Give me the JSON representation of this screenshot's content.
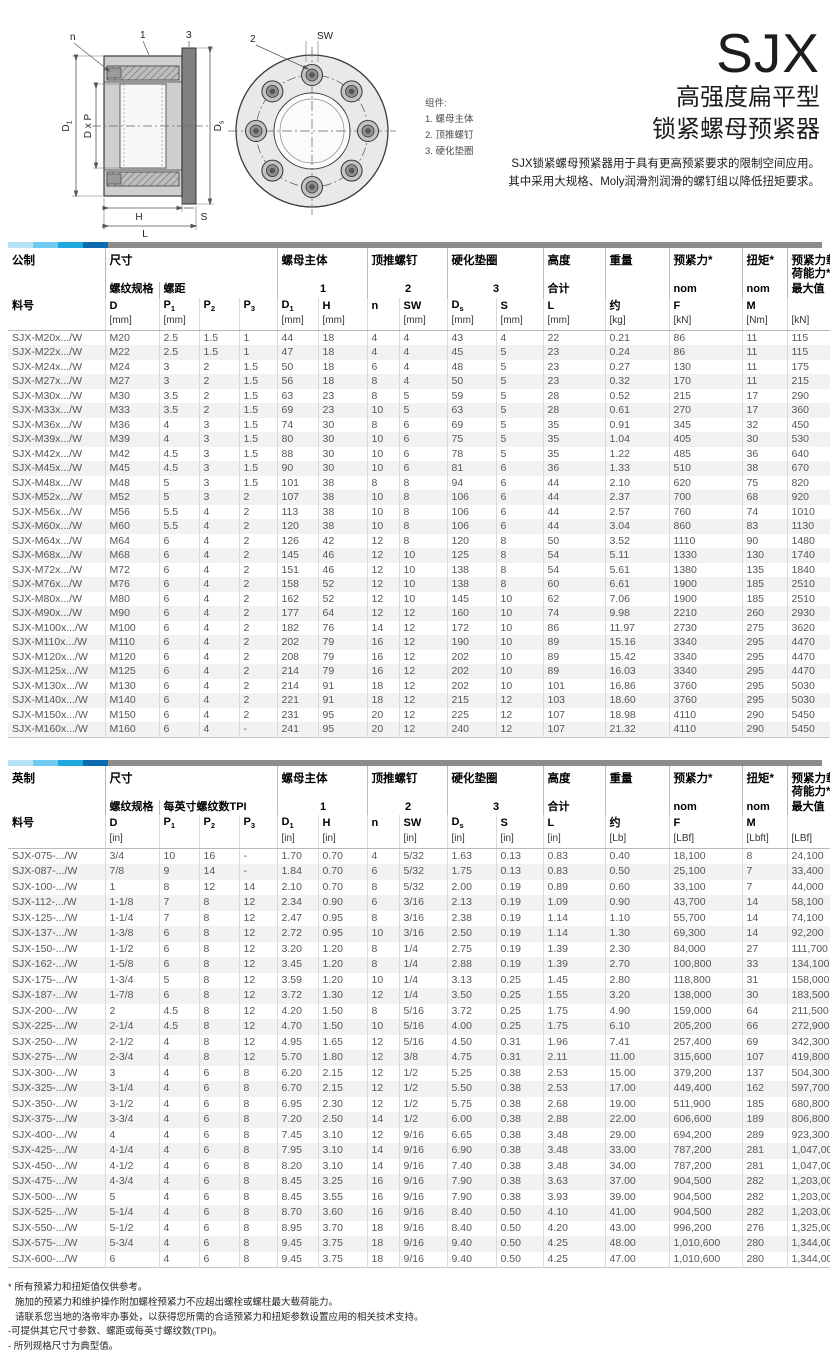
{
  "header": {
    "product": "SJX",
    "subtitle1": "高强度扁平型",
    "subtitle2": "锁紧螺母预紧器",
    "desc1": "SJX锁紧螺母预紧器用于具有更高预紧要求的限制空间应用。",
    "desc2": "其中采用大规格、Moly润滑剂润滑的螺钉组以降低扭矩要求。"
  },
  "diagram": {
    "legend_title": "组件:",
    "legend": [
      "1. 螺母主体",
      "2. 顶推螺钉",
      "3. 硬化垫圈"
    ],
    "labels": {
      "n": "n",
      "one": "1",
      "three": "3",
      "two": "2",
      "sw": "SW",
      "d1": "D",
      "d1sub": "1",
      "dxp": "D x P",
      "ds": "D",
      "dssub": "s",
      "h": "H",
      "s": "S",
      "l": "L"
    }
  },
  "colors": {
    "accent_bar": [
      "#b7e3f7",
      "#6fcbf0",
      "#21a8e0",
      "#0b6ab0"
    ],
    "accent_bar_rest": "#8c8c8c"
  },
  "metric": {
    "groups": {
      "unit_system": "公制",
      "dims": "尺寸",
      "nut_body": "螺母主体",
      "jack_screws": "顶推螺钉",
      "washer": "硬化垫圈",
      "height": "高度",
      "weight": "重量",
      "preload": "预紧力*",
      "torque": "扭矩*",
      "capacity": "预紧力载\n荷能力*"
    },
    "subgroups": {
      "thread": "螺纹规格",
      "pitch": "螺距",
      "g1": "1",
      "g2": "2",
      "g3": "3",
      "total": "合计",
      "nom1": "nom",
      "nom2": "nom",
      "max": "最大值"
    },
    "columns": [
      {
        "name": "料号",
        "unit": ""
      },
      {
        "name": "D",
        "unit": "[mm]"
      },
      {
        "name": "P",
        "sub": "1",
        "unit": "[mm]"
      },
      {
        "name": "P",
        "sub": "2",
        "unit": ""
      },
      {
        "name": "P",
        "sub": "3",
        "unit": ""
      },
      {
        "name": "D",
        "sub": "1",
        "unit": "[mm]"
      },
      {
        "name": "H",
        "unit": "[mm]"
      },
      {
        "name": "n",
        "unit": ""
      },
      {
        "name": "SW",
        "unit": "[mm]"
      },
      {
        "name": "D",
        "sub": "s",
        "unit": "[mm]"
      },
      {
        "name": "S",
        "unit": "[mm]"
      },
      {
        "name": "L",
        "unit": "[mm]"
      },
      {
        "name": "约",
        "unit": "[kg]"
      },
      {
        "name": "F",
        "unit": "[kN]"
      },
      {
        "name": "M",
        "unit": "[Nm]"
      },
      {
        "name": "",
        "unit": "[kN]"
      }
    ],
    "rows": [
      [
        "SJX-M20x.../W",
        "M20",
        "2.5",
        "1.5",
        "1",
        "44",
        "18",
        "4",
        "4",
        "43",
        "4",
        "22",
        "0.21",
        "86",
        "11",
        "115"
      ],
      [
        "SJX-M22x.../W",
        "M22",
        "2.5",
        "1.5",
        "1",
        "47",
        "18",
        "4",
        "4",
        "45",
        "5",
        "23",
        "0.24",
        "86",
        "11",
        "115"
      ],
      [
        "SJX-M24x.../W",
        "M24",
        "3",
        "2",
        "1.5",
        "50",
        "18",
        "6",
        "4",
        "48",
        "5",
        "23",
        "0.27",
        "130",
        "11",
        "175"
      ],
      [
        "SJX-M27x.../W",
        "M27",
        "3",
        "2",
        "1.5",
        "56",
        "18",
        "8",
        "4",
        "50",
        "5",
        "23",
        "0.32",
        "170",
        "11",
        "215"
      ],
      [
        "SJX-M30x.../W",
        "M30",
        "3.5",
        "2",
        "1.5",
        "63",
        "23",
        "8",
        "5",
        "59",
        "5",
        "28",
        "0.52",
        "215",
        "17",
        "290"
      ],
      [
        "SJX-M33x.../W",
        "M33",
        "3.5",
        "2",
        "1.5",
        "69",
        "23",
        "10",
        "5",
        "63",
        "5",
        "28",
        "0.61",
        "270",
        "17",
        "360"
      ],
      [
        "SJX-M36x.../W",
        "M36",
        "4",
        "3",
        "1.5",
        "74",
        "30",
        "8",
        "6",
        "69",
        "5",
        "35",
        "0.91",
        "345",
        "32",
        "450"
      ],
      [
        "SJX-M39x.../W",
        "M39",
        "4",
        "3",
        "1.5",
        "80",
        "30",
        "10",
        "6",
        "75",
        "5",
        "35",
        "1.04",
        "405",
        "30",
        "530"
      ],
      [
        "SJX-M42x.../W",
        "M42",
        "4.5",
        "3",
        "1.5",
        "88",
        "30",
        "10",
        "6",
        "78",
        "5",
        "35",
        "1.22",
        "485",
        "36",
        "640"
      ],
      [
        "SJX-M45x.../W",
        "M45",
        "4.5",
        "3",
        "1.5",
        "90",
        "30",
        "10",
        "6",
        "81",
        "6",
        "36",
        "1.33",
        "510",
        "38",
        "670"
      ],
      [
        "SJX-M48x.../W",
        "M48",
        "5",
        "3",
        "1.5",
        "101",
        "38",
        "8",
        "8",
        "94",
        "6",
        "44",
        "2.10",
        "620",
        "75",
        "820"
      ],
      [
        "SJX-M52x.../W",
        "M52",
        "5",
        "3",
        "2",
        "107",
        "38",
        "10",
        "8",
        "106",
        "6",
        "44",
        "2.37",
        "700",
        "68",
        "920"
      ],
      [
        "SJX-M56x.../W",
        "M56",
        "5.5",
        "4",
        "2",
        "113",
        "38",
        "10",
        "8",
        "106",
        "6",
        "44",
        "2.57",
        "760",
        "74",
        "1010"
      ],
      [
        "SJX-M60x.../W",
        "M60",
        "5.5",
        "4",
        "2",
        "120",
        "38",
        "10",
        "8",
        "106",
        "6",
        "44",
        "3.04",
        "860",
        "83",
        "1130"
      ],
      [
        "SJX-M64x.../W",
        "M64",
        "6",
        "4",
        "2",
        "126",
        "42",
        "12",
        "8",
        "120",
        "8",
        "50",
        "3.52",
        "1110",
        "90",
        "1480"
      ],
      [
        "SJX-M68x.../W",
        "M68",
        "6",
        "4",
        "2",
        "145",
        "46",
        "12",
        "10",
        "125",
        "8",
        "54",
        "5.11",
        "1330",
        "130",
        "1740"
      ],
      [
        "SJX-M72x.../W",
        "M72",
        "6",
        "4",
        "2",
        "151",
        "46",
        "12",
        "10",
        "138",
        "8",
        "54",
        "5.61",
        "1380",
        "135",
        "1840"
      ],
      [
        "SJX-M76x.../W",
        "M76",
        "6",
        "4",
        "2",
        "158",
        "52",
        "12",
        "10",
        "138",
        "8",
        "60",
        "6.61",
        "1900",
        "185",
        "2510"
      ],
      [
        "SJX-M80x.../W",
        "M80",
        "6",
        "4",
        "2",
        "162",
        "52",
        "12",
        "10",
        "145",
        "10",
        "62",
        "7.06",
        "1900",
        "185",
        "2510"
      ],
      [
        "SJX-M90x.../W",
        "M90",
        "6",
        "4",
        "2",
        "177",
        "64",
        "12",
        "12",
        "160",
        "10",
        "74",
        "9.98",
        "2210",
        "260",
        "2930"
      ],
      [
        "SJX-M100x.../W",
        "M100",
        "6",
        "4",
        "2",
        "182",
        "76",
        "14",
        "12",
        "172",
        "10",
        "86",
        "11.97",
        "2730",
        "275",
        "3620"
      ],
      [
        "SJX-M110x.../W",
        "M110",
        "6",
        "4",
        "2",
        "202",
        "79",
        "16",
        "12",
        "190",
        "10",
        "89",
        "15.16",
        "3340",
        "295",
        "4470"
      ],
      [
        "SJX-M120x.../W",
        "M120",
        "6",
        "4",
        "2",
        "208",
        "79",
        "16",
        "12",
        "202",
        "10",
        "89",
        "15.42",
        "3340",
        "295",
        "4470"
      ],
      [
        "SJX-M125x.../W",
        "M125",
        "6",
        "4",
        "2",
        "214",
        "79",
        "16",
        "12",
        "202",
        "10",
        "89",
        "16.03",
        "3340",
        "295",
        "4470"
      ],
      [
        "SJX-M130x.../W",
        "M130",
        "6",
        "4",
        "2",
        "214",
        "91",
        "18",
        "12",
        "202",
        "10",
        "101",
        "16.86",
        "3760",
        "295",
        "5030"
      ],
      [
        "SJX-M140x.../W",
        "M140",
        "6",
        "4",
        "2",
        "221",
        "91",
        "18",
        "12",
        "215",
        "12",
        "103",
        "18.60",
        "3760",
        "295",
        "5030"
      ],
      [
        "SJX-M150x.../W",
        "M150",
        "6",
        "4",
        "2",
        "231",
        "95",
        "20",
        "12",
        "225",
        "12",
        "107",
        "18.98",
        "4110",
        "290",
        "5450"
      ],
      [
        "SJX-M160x.../W",
        "M160",
        "6",
        "4",
        "-",
        "241",
        "95",
        "20",
        "12",
        "240",
        "12",
        "107",
        "21.32",
        "4110",
        "290",
        "5450"
      ]
    ]
  },
  "imperial": {
    "groups": {
      "unit_system": "英制",
      "dims": "尺寸",
      "nut_body": "螺母主体",
      "jack_screws": "顶推螺钉",
      "washer": "硬化垫圈",
      "height": "高度",
      "weight": "重量",
      "preload": "预紧力*",
      "torque": "扭矩*",
      "capacity": "预紧力载\n荷能力*"
    },
    "subgroups": {
      "thread": "螺纹规格",
      "pitch": "每英寸螺纹数TPI",
      "g1": "1",
      "g2": "2",
      "g3": "3",
      "total": "合计",
      "nom1": "nom",
      "nom2": "nom",
      "max": "最大值"
    },
    "columns": [
      {
        "name": "料号",
        "unit": ""
      },
      {
        "name": "D",
        "unit": "[in]"
      },
      {
        "name": "P",
        "sub": "1",
        "unit": ""
      },
      {
        "name": "P",
        "sub": "2",
        "unit": ""
      },
      {
        "name": "P",
        "sub": "3",
        "unit": ""
      },
      {
        "name": "D",
        "sub": "1",
        "unit": "[in]"
      },
      {
        "name": "H",
        "unit": "[in]"
      },
      {
        "name": "n",
        "unit": ""
      },
      {
        "name": "SW",
        "unit": "[in]"
      },
      {
        "name": "D",
        "sub": "s",
        "unit": "[in]"
      },
      {
        "name": "S",
        "unit": "[in]"
      },
      {
        "name": "L",
        "unit": "[in]"
      },
      {
        "name": "约",
        "unit": "[Lb]"
      },
      {
        "name": "F",
        "unit": "[LBf]"
      },
      {
        "name": "M",
        "unit": "[Lbft]"
      },
      {
        "name": "",
        "unit": "[LBf]"
      }
    ],
    "rows": [
      [
        "SJX-075-.../W",
        "3/4",
        "10",
        "16",
        "-",
        "1.70",
        "0.70",
        "4",
        "5/32",
        "1.63",
        "0.13",
        "0.83",
        "0.40",
        "18,100",
        "8",
        "24,100"
      ],
      [
        "SJX-087-.../W",
        "7/8",
        "9",
        "14",
        "-",
        "1.84",
        "0.70",
        "6",
        "5/32",
        "1.75",
        "0.13",
        "0.83",
        "0.50",
        "25,100",
        "7",
        "33,400"
      ],
      [
        "SJX-100-.../W",
        "1",
        "8",
        "12",
        "14",
        "2.10",
        "0.70",
        "8",
        "5/32",
        "2.00",
        "0.19",
        "0.89",
        "0.60",
        "33,100",
        "7",
        "44,000"
      ],
      [
        "SJX-112-.../W",
        "1-1/8",
        "7",
        "8",
        "12",
        "2.34",
        "0.90",
        "6",
        "3/16",
        "2.13",
        "0.19",
        "1.09",
        "0.90",
        "43,700",
        "14",
        "58,100"
      ],
      [
        "SJX-125-.../W",
        "1-1/4",
        "7",
        "8",
        "12",
        "2.47",
        "0.95",
        "8",
        "3/16",
        "2.38",
        "0.19",
        "1.14",
        "1.10",
        "55,700",
        "14",
        "74,100"
      ],
      [
        "SJX-137-.../W",
        "1-3/8",
        "6",
        "8",
        "12",
        "2.72",
        "0.95",
        "10",
        "3/16",
        "2.50",
        "0.19",
        "1.14",
        "1.30",
        "69,300",
        "14",
        "92,200"
      ],
      [
        "SJX-150-.../W",
        "1-1/2",
        "6",
        "8",
        "12",
        "3.20",
        "1.20",
        "8",
        "1/4",
        "2.75",
        "0.19",
        "1.39",
        "2.30",
        "84,000",
        "27",
        "111,700"
      ],
      [
        "SJX-162-.../W",
        "1-5/8",
        "6",
        "8",
        "12",
        "3.45",
        "1.20",
        "8",
        "1/4",
        "2.88",
        "0.19",
        "1.39",
        "2.70",
        "100,800",
        "33",
        "134,100"
      ],
      [
        "SJX-175-.../W",
        "1-3/4",
        "5",
        "8",
        "12",
        "3.59",
        "1.20",
        "10",
        "1/4",
        "3.13",
        "0.25",
        "1.45",
        "2.80",
        "118,800",
        "31",
        "158,000"
      ],
      [
        "SJX-187-.../W",
        "1-7/8",
        "6",
        "8",
        "12",
        "3.72",
        "1.30",
        "12",
        "1/4",
        "3.50",
        "0.25",
        "1.55",
        "3.20",
        "138,000",
        "30",
        "183,500"
      ],
      [
        "SJX-200-.../W",
        "2",
        "4.5",
        "8",
        "12",
        "4.20",
        "1.50",
        "8",
        "5/16",
        "3.72",
        "0.25",
        "1.75",
        "4.90",
        "159,000",
        "64",
        "211,500"
      ],
      [
        "SJX-225-.../W",
        "2-1/4",
        "4.5",
        "8",
        "12",
        "4.70",
        "1.50",
        "10",
        "5/16",
        "4.00",
        "0.25",
        "1.75",
        "6.10",
        "205,200",
        "66",
        "272,900"
      ],
      [
        "SJX-250-.../W",
        "2-1/2",
        "4",
        "8",
        "12",
        "4.95",
        "1.65",
        "12",
        "5/16",
        "4.50",
        "0.31",
        "1.96",
        "7.41",
        "257,400",
        "69",
        "342,300"
      ],
      [
        "SJX-275-.../W",
        "2-3/4",
        "4",
        "8",
        "12",
        "5.70",
        "1.80",
        "12",
        "3/8",
        "4.75",
        "0.31",
        "2.11",
        "11.00",
        "315,600",
        "107",
        "419,800"
      ],
      [
        "SJX-300-.../W",
        "3",
        "4",
        "6",
        "8",
        "6.20",
        "2.15",
        "12",
        "1/2",
        "5.25",
        "0.38",
        "2.53",
        "15.00",
        "379,200",
        "137",
        "504,300"
      ],
      [
        "SJX-325-.../W",
        "3-1/4",
        "4",
        "6",
        "8",
        "6.70",
        "2.15",
        "12",
        "1/2",
        "5.50",
        "0.38",
        "2.53",
        "17.00",
        "449,400",
        "162",
        "597,700"
      ],
      [
        "SJX-350-.../W",
        "3-1/2",
        "4",
        "6",
        "8",
        "6.95",
        "2.30",
        "12",
        "1/2",
        "5.75",
        "0.38",
        "2.68",
        "19.00",
        "511,900",
        "185",
        "680,800"
      ],
      [
        "SJX-375-.../W",
        "3-3/4",
        "4",
        "6",
        "8",
        "7.20",
        "2.50",
        "14",
        "1/2",
        "6.00",
        "0.38",
        "2.88",
        "22.00",
        "606,600",
        "189",
        "806,800"
      ],
      [
        "SJX-400-.../W",
        "4",
        "4",
        "6",
        "8",
        "7.45",
        "3.10",
        "12",
        "9/16",
        "6.65",
        "0.38",
        "3.48",
        "29.00",
        "694,200",
        "289",
        "923,300"
      ],
      [
        "SJX-425-.../W",
        "4-1/4",
        "4",
        "6",
        "8",
        "7.95",
        "3.10",
        "14",
        "9/16",
        "6.90",
        "0.38",
        "3.48",
        "33.00",
        "787,200",
        "281",
        "1,047,000"
      ],
      [
        "SJX-450-.../W",
        "4-1/2",
        "4",
        "6",
        "8",
        "8.20",
        "3.10",
        "14",
        "9/16",
        "7.40",
        "0.38",
        "3.48",
        "34.00",
        "787,200",
        "281",
        "1,047,000"
      ],
      [
        "SJX-475-.../W",
        "4-3/4",
        "4",
        "6",
        "8",
        "8.45",
        "3.25",
        "16",
        "9/16",
        "7.90",
        "0.38",
        "3.63",
        "37.00",
        "904,500",
        "282",
        "1,203,000"
      ],
      [
        "SJX-500-.../W",
        "5",
        "4",
        "6",
        "8",
        "8.45",
        "3.55",
        "16",
        "9/16",
        "7.90",
        "0.38",
        "3.93",
        "39.00",
        "904,500",
        "282",
        "1,203,000"
      ],
      [
        "SJX-525-.../W",
        "5-1/4",
        "4",
        "6",
        "8",
        "8.70",
        "3.60",
        "16",
        "9/16",
        "8.40",
        "0.50",
        "4.10",
        "41.00",
        "904,500",
        "282",
        "1,203,000"
      ],
      [
        "SJX-550-.../W",
        "5-1/2",
        "4",
        "6",
        "8",
        "8.95",
        "3.70",
        "18",
        "9/16",
        "8.40",
        "0.50",
        "4.20",
        "43.00",
        "996,200",
        "276",
        "1,325,000"
      ],
      [
        "SJX-575-.../W",
        "5-3/4",
        "4",
        "6",
        "8",
        "9.45",
        "3.75",
        "18",
        "9/16",
        "9.40",
        "0.50",
        "4.25",
        "48.00",
        "1,010,600",
        "280",
        "1,344,000"
      ],
      [
        "SJX-600-.../W",
        "6",
        "4",
        "6",
        "8",
        "9.45",
        "3.75",
        "18",
        "9/16",
        "9.40",
        "0.50",
        "4.25",
        "47.00",
        "1,010,600",
        "280",
        "1,344,000"
      ]
    ]
  },
  "footnotes": [
    "* 所有预紧力和扭矩值仅供参考。",
    "施加的预紧力和维护操作附加螺栓预紧力不应超出螺栓或螺柱最大载荷能力。",
    "请联系您当地的洛帝牢办事处，以获得您所需的合适预紧力和扭矩参数设置应用的相关技术支持。",
    "-可提供其它尺寸参数、螺距或每英寸螺纹数(TPI)。",
    "- 所列规格尺寸为典型值。"
  ]
}
